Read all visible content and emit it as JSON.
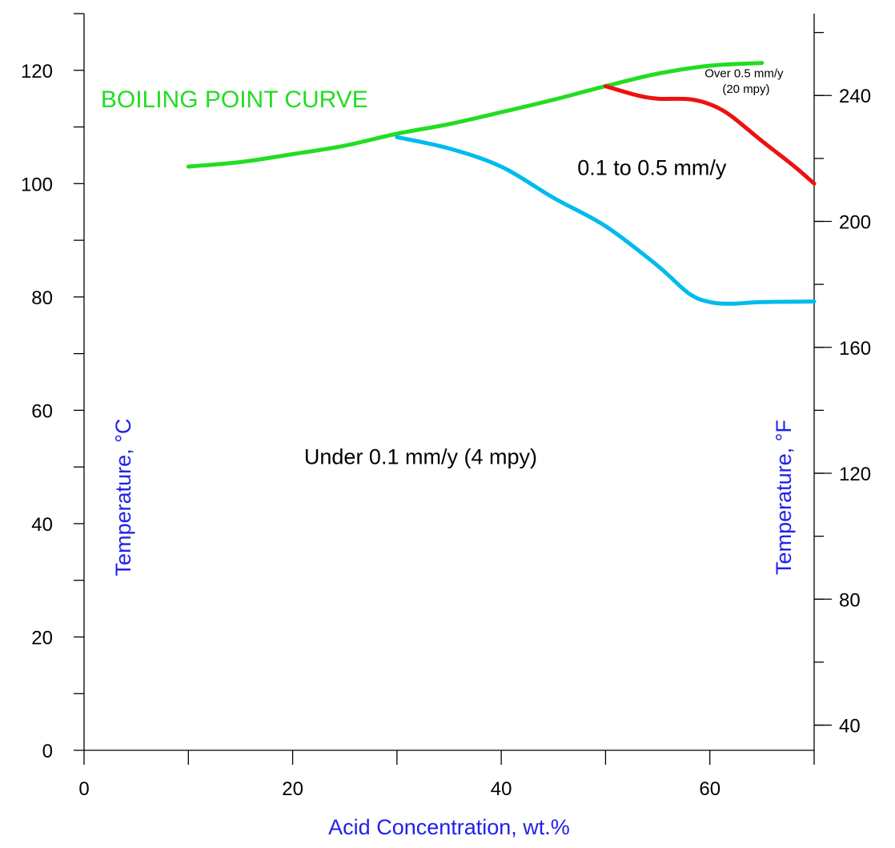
{
  "chart_data": {
    "type": "line",
    "xlabel": "Acid Concentration, wt.%",
    "ylabel": "Temperature, °C",
    "y2label": "Temperature, °F",
    "xlim": [
      0,
      70
    ],
    "ylim": [
      0,
      130
    ],
    "y2lim": [
      32,
      266
    ],
    "x_ticks": [
      0,
      20,
      40,
      60
    ],
    "x_tick_labels": [
      "0",
      "20",
      "40",
      "60"
    ],
    "x_minor_ticks": [
      0,
      10,
      20,
      30,
      40,
      50,
      60,
      70
    ],
    "y_ticks": [
      0,
      20,
      40,
      60,
      80,
      100,
      120
    ],
    "y_tick_labels": [
      "0",
      "20",
      "40",
      "60",
      "80",
      "100",
      "120"
    ],
    "y_minor_ticks": [
      0,
      10,
      20,
      30,
      40,
      50,
      60,
      70,
      80,
      90,
      100,
      110,
      120,
      130
    ],
    "y2_ticks": [
      40,
      80,
      120,
      160,
      200,
      240
    ],
    "y2_tick_labels": [
      "40",
      "80",
      "120",
      "160",
      "200",
      "240"
    ],
    "y2_minor_ticks": [
      40,
      60,
      80,
      100,
      120,
      140,
      160,
      180,
      200,
      220,
      240,
      260
    ],
    "grid": false,
    "series": [
      {
        "name": "BOILING POINT CURVE",
        "color": "#22dd22",
        "x": [
          10,
          15,
          20,
          25,
          30,
          35,
          40,
          45,
          50,
          55,
          60,
          65
        ],
        "y": [
          103,
          103.8,
          105.2,
          106.7,
          108.8,
          110.5,
          112.6,
          114.8,
          117.2,
          119.4,
          120.8,
          121.3
        ]
      },
      {
        "name": "",
        "color": "#00bbee",
        "x": [
          30,
          35,
          40,
          45,
          50,
          55,
          58,
          60,
          62,
          65,
          70
        ],
        "y": [
          108.2,
          106.2,
          103.0,
          97.5,
          92.5,
          85.5,
          80.6,
          79.1,
          78.8,
          79.1,
          79.2
        ]
      },
      {
        "name": "",
        "color": "#ee1111",
        "x": [
          50,
          53,
          55,
          58,
          60,
          62,
          65,
          68,
          70
        ],
        "y": [
          117.2,
          115.6,
          115.0,
          114.9,
          114.0,
          112.0,
          107.5,
          103.2,
          100.0
        ]
      }
    ],
    "annotations": [
      {
        "text": "BOILING POINT CURVE",
        "color": "#22dd22",
        "x": 1.6,
        "y": 113.5
      },
      {
        "text": "0.1 to 0.5 mm/y",
        "color": "#000000",
        "x": 47.3,
        "y": 101.5
      },
      {
        "text": "Under 0.1 mm/y (4 mpy)",
        "color": "#000000",
        "x": 21.1,
        "y": 50.5
      },
      {
        "text": "Over 0.5 mm/y",
        "color": "#000000",
        "x": 59.5,
        "y": 118.8
      },
      {
        "text": "(20 mpy)",
        "color": "#000000",
        "x": 61.2,
        "y": 116.0
      }
    ]
  }
}
